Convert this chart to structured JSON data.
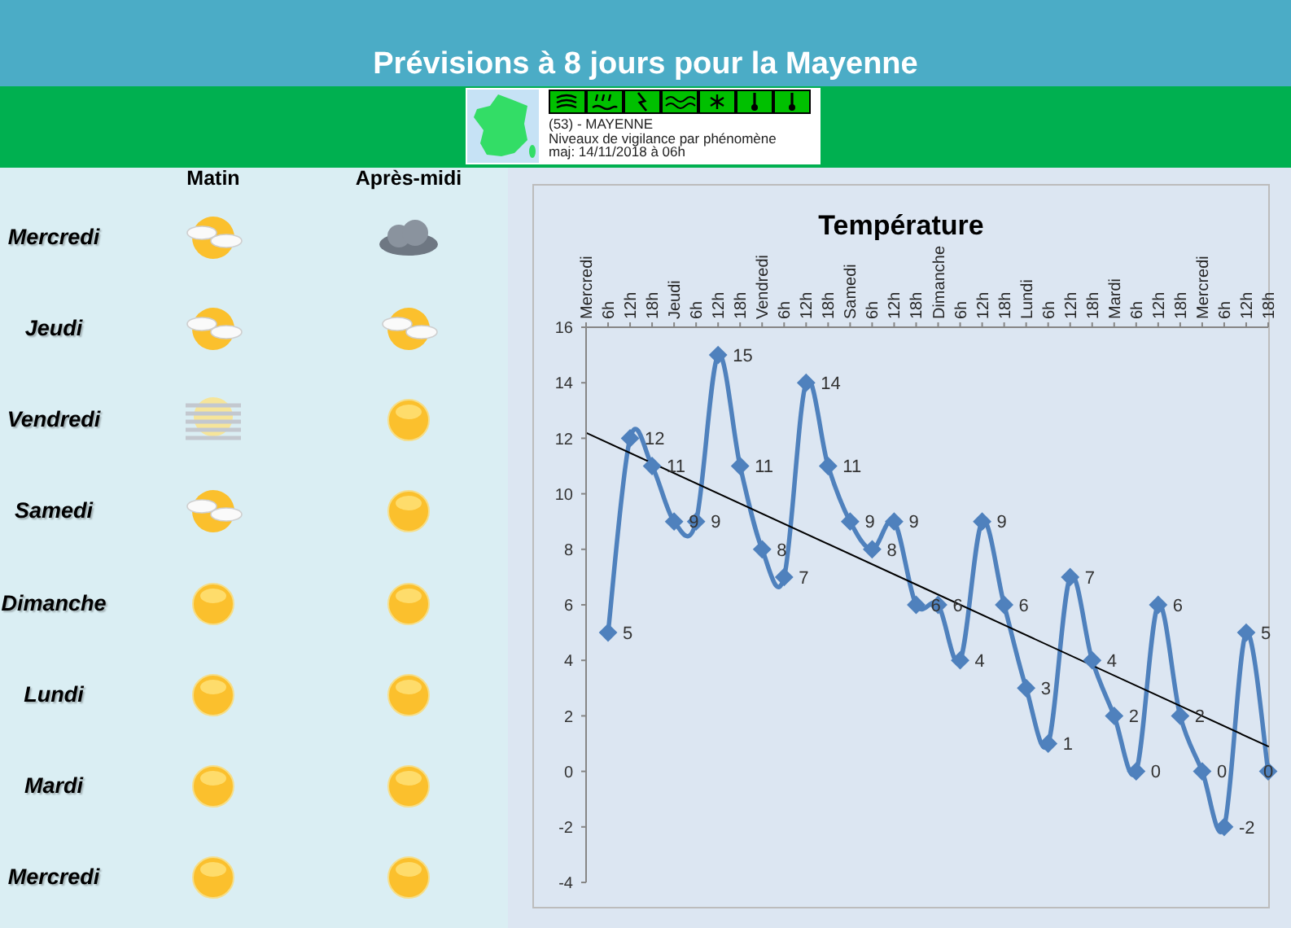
{
  "chart_data": [
    {
      "type": "other",
      "title": "Prévisions à 8 jours pour la Mayenne",
      "categories": [
        "Matin",
        "Après-midi"
      ],
      "y_categories": [
        "Mercredi",
        "Jeudi",
        "Vendredi",
        "Samedi",
        "Dimanche",
        "Lundi",
        "Mardi",
        "Mercredi"
      ],
      "annotations": [
        "(53) - MAYENNE",
        "Niveaux de vigilance par phénomène",
        "maj: 14/11/2018 à 06h"
      ]
    },
    {
      "type": "line",
      "title": "Température",
      "categories": [
        "Mercredi",
        "6h",
        "12h",
        "18h",
        "Jeudi",
        "6h",
        "12h",
        "18h",
        "Vendredi",
        "6h",
        "12h",
        "18h",
        "Samedi",
        "6h",
        "12h",
        "18h",
        "Dimanche",
        "6h",
        "12h",
        "18h",
        "Lundi",
        "6h",
        "12h",
        "18h",
        "Mardi",
        "6h",
        "12h",
        "18h",
        "Mercredi",
        "6h",
        "12h",
        "18h"
      ],
      "series": [
        {
          "color": "#4f81bd",
          "marker": "diamond",
          "values": [
            null,
            5,
            12,
            11,
            9,
            9,
            15,
            11,
            8,
            7,
            14,
            11,
            9,
            8,
            9,
            6,
            6,
            4,
            9,
            6,
            3,
            1,
            7,
            4,
            2,
            0,
            6,
            2,
            0,
            -2,
            5,
            0
          ],
          "value_labels": [
            null,
            "5",
            "12",
            "11",
            "9",
            "9",
            "15",
            "11",
            "8",
            "7",
            "14",
            "11",
            "9",
            "8",
            "9",
            "6",
            "6",
            "4",
            "9",
            "6",
            "3",
            "1",
            "7",
            "4",
            "2",
            "0",
            "6",
            "2",
            "0",
            "-2",
            "5",
            "0"
          ]
        },
        {
          "type": "line",
          "color": "#000000",
          "values": [
            12.2,
            null,
            null,
            null,
            null,
            null,
            null,
            null,
            null,
            null,
            null,
            null,
            null,
            null,
            null,
            null,
            null,
            null,
            null,
            null,
            null,
            null,
            null,
            null,
            null,
            null,
            null,
            null,
            null,
            null,
            null,
            0.9
          ]
        }
      ],
      "ylim": [
        -4,
        16
      ],
      "yticks": [
        -4,
        -2,
        0,
        2,
        4,
        6,
        8,
        10,
        12,
        14,
        16
      ]
    }
  ]
}
